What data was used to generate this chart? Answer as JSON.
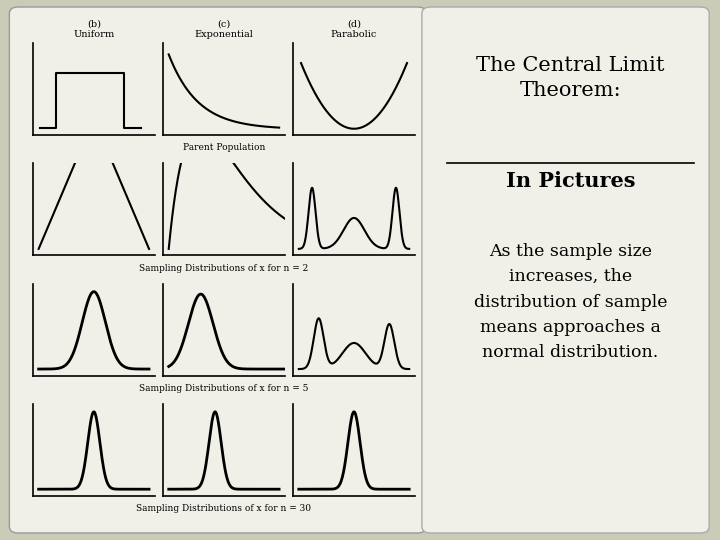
{
  "bg_color": "#cccbb8",
  "panel_color": "#f0f0e8",
  "title_text": "The Central Limit\nTheorem:",
  "subtitle_text": "In Pictures",
  "body_text": "As the sample size\nincreases, the\ndistribution of sample\nmeans approaches a\nnormal distribution.",
  "col_titles": [
    "(b)\nUniform",
    "(c)\nExponential",
    "(d)\nParabolic"
  ],
  "row_labels": [
    "Parent Population",
    "Sampling Distributions of x for n = 2",
    "Sampling Distributions of x for n = 5",
    "Sampling Distributions of x for n = 30"
  ],
  "font_family": "serif"
}
